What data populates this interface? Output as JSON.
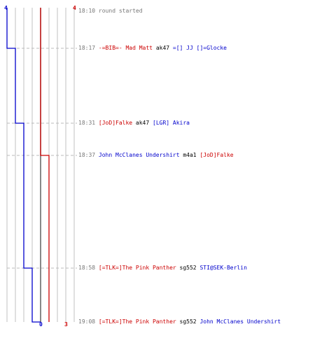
{
  "scores": {
    "blue_start": "4",
    "red_start": "4",
    "blue_end": "0",
    "red_end": "3"
  },
  "colors": {
    "blue": "#0000cc",
    "red": "#cc0000",
    "grid": "#c0c0c0",
    "zero": "#555555"
  },
  "events": [
    {
      "time": "18:10",
      "message": "round started"
    },
    {
      "time": "18:17",
      "killer": "-=BIB=- Mad Matt",
      "killer_team": "red",
      "weapon": "ak47",
      "victim": "=[] JJ []=Glocke",
      "victim_team": "blue",
      "blue_count": 3,
      "red_count": 4
    },
    {
      "time": "18:31",
      "killer": "[JoD]Falke",
      "killer_team": "red",
      "weapon": "ak47",
      "victim": "[LGR] Akira",
      "victim_team": "blue",
      "blue_count": 2,
      "red_count": 4
    },
    {
      "time": "18:37",
      "killer": "John McClanes Undershirt",
      "killer_team": "blue",
      "weapon": "m4a1",
      "victim": "[JoD]Falke",
      "victim_team": "red",
      "blue_count": 2,
      "red_count": 3
    },
    {
      "time": "18:58",
      "killer": "[=TLK=]The Pink Panther",
      "killer_team": "red",
      "weapon": "sg552",
      "victim": "STI@SEK-Berlin",
      "victim_team": "blue",
      "blue_count": 1,
      "red_count": 3
    },
    {
      "time": "19:08",
      "killer": "[=TLK=]The Pink Panther",
      "killer_team": "red",
      "weapon": "sg552",
      "victim": "John McClanes Undershirt",
      "victim_team": "blue",
      "blue_count": 0,
      "red_count": 3
    }
  ]
}
